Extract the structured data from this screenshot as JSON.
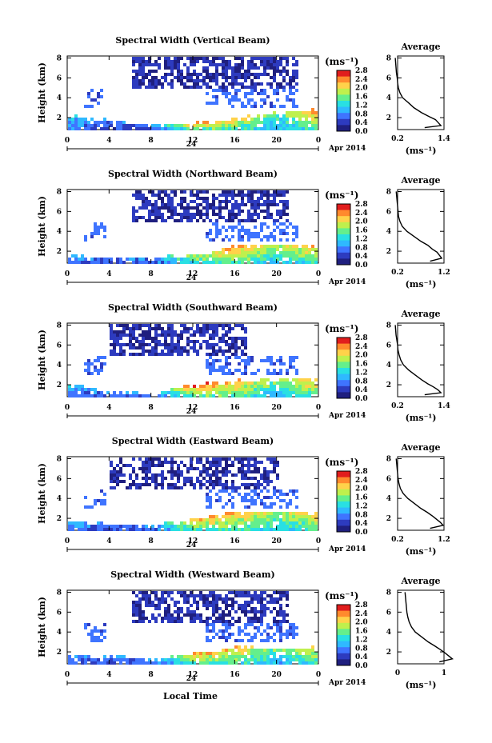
{
  "chart_data": [
    {
      "type": "heatmap",
      "title": "Spectral Width (Vertical Beam)",
      "xlabel": "",
      "ylabel": "Height (km)",
      "x_ticks": [
        "0",
        "4",
        "8",
        "12",
        "16",
        "20",
        "0"
      ],
      "y_ticks": [
        "2",
        "4",
        "6",
        "8"
      ],
      "date_label": "24",
      "month_label": "Apr 2014",
      "colorbar_unit": "(ms⁻¹)",
      "colorbar_ticks": [
        "0.0",
        "0.4",
        "0.8",
        "1.2",
        "1.6",
        "2.0",
        "2.4",
        "2.8"
      ],
      "xlim": [
        0,
        24
      ],
      "ylim": [
        0.8,
        8.2
      ],
      "heatmap_model": {
        "x_hours": [
          0,
          4,
          8,
          12,
          16,
          20,
          24
        ],
        "lower_layer_top_km": [
          2.3,
          1.8,
          1.3,
          1.6,
          2.0,
          2.6,
          2.9
        ],
        "peak_width_ms": [
          1.0,
          0.5,
          0.6,
          2.4,
          2.2,
          1.4,
          2.6
        ],
        "upper_echo_hours": [
          [
            6,
            22
          ]
        ]
      },
      "avg": {
        "title": "Average",
        "xlabel": "(ms⁻¹)",
        "x_ticks": [
          "0.2",
          "1.4"
        ],
        "y_ticks": [
          "2",
          "4",
          "6",
          "8"
        ],
        "profile": {
          "heights": [
            1.0,
            1.2,
            1.5,
            1.8,
            2.1,
            2.5,
            3.0,
            3.5,
            4.0,
            4.5,
            5.0,
            5.5,
            6.0,
            6.5,
            7.0,
            7.5,
            8.0
          ],
          "values": [
            0.9,
            1.32,
            1.25,
            1.18,
            1.02,
            0.82,
            0.62,
            0.48,
            0.33,
            0.26,
            0.22,
            0.2,
            0.19,
            0.17,
            0.16,
            0.15,
            0.14
          ]
        }
      }
    },
    {
      "type": "heatmap",
      "title": "Spectral Width (Northward Beam)",
      "xlabel": "",
      "ylabel": "Height (km)",
      "x_ticks": [
        "0",
        "4",
        "8",
        "12",
        "16",
        "20",
        "0"
      ],
      "y_ticks": [
        "2",
        "4",
        "6",
        "8"
      ],
      "date_label": "24",
      "month_label": "Apr 2014",
      "colorbar_unit": "(ms⁻¹)",
      "colorbar_ticks": [
        "0.0",
        "0.4",
        "0.8",
        "1.2",
        "1.6",
        "2.0",
        "2.4",
        "2.8"
      ],
      "xlim": [
        0,
        24
      ],
      "ylim": [
        0.8,
        8.2
      ],
      "heatmap_model": {
        "x_hours": [
          0,
          4,
          8,
          12,
          16,
          20,
          24
        ],
        "lower_layer_top_km": [
          1.7,
          1.5,
          1.5,
          1.8,
          2.6,
          2.9,
          2.6
        ],
        "peak_width_ms": [
          0.8,
          0.5,
          0.7,
          1.9,
          2.4,
          1.8,
          2.3
        ],
        "upper_echo_hours": [
          [
            6,
            21
          ]
        ]
      },
      "avg": {
        "title": "Average",
        "xlabel": "(ms⁻¹)",
        "x_ticks": [
          "0.2",
          "1.2"
        ],
        "y_ticks": [
          "2",
          "4",
          "6",
          "8"
        ],
        "profile": {
          "heights": [
            1.0,
            1.3,
            1.6,
            1.9,
            2.2,
            2.6,
            3.0,
            3.5,
            4.0,
            4.5,
            5.0,
            5.5,
            6.0,
            6.5,
            7.0,
            7.5,
            8.0
          ],
          "values": [
            0.9,
            1.15,
            1.1,
            1.05,
            0.95,
            0.85,
            0.7,
            0.55,
            0.4,
            0.3,
            0.25,
            0.22,
            0.21,
            0.2,
            0.19,
            0.18,
            0.17
          ]
        }
      }
    },
    {
      "type": "heatmap",
      "title": "Spectral Width (Southward Beam)",
      "xlabel": "",
      "ylabel": "Height (km)",
      "x_ticks": [
        "0",
        "4",
        "8",
        "12",
        "16",
        "20",
        "0"
      ],
      "y_ticks": [
        "2",
        "4",
        "6",
        "8"
      ],
      "date_label": "24",
      "month_label": "Apr 2014",
      "colorbar_unit": "(ms⁻¹)",
      "colorbar_ticks": [
        "0.0",
        "0.4",
        "0.8",
        "1.2",
        "1.6",
        "2.0",
        "2.4",
        "2.8"
      ],
      "xlim": [
        0,
        24
      ],
      "ylim": [
        0.8,
        8.2
      ],
      "heatmap_model": {
        "x_hours": [
          0,
          4,
          8,
          12,
          16,
          20,
          24
        ],
        "lower_layer_top_km": [
          2.1,
          1.4,
          1.2,
          2.1,
          2.5,
          2.7,
          2.8
        ],
        "peak_width_ms": [
          0.9,
          0.6,
          0.7,
          2.5,
          2.3,
          1.6,
          2.5
        ],
        "upper_echo_hours": [
          [
            4,
            17
          ]
        ]
      },
      "avg": {
        "title": "Average",
        "xlabel": "(ms⁻¹)",
        "x_ticks": [
          "0.2",
          "1.4"
        ],
        "y_ticks": [
          "2",
          "4",
          "6",
          "8"
        ],
        "profile": {
          "heights": [
            1.0,
            1.2,
            1.5,
            1.8,
            2.1,
            2.5,
            3.0,
            3.5,
            4.0,
            4.5,
            5.0,
            5.5,
            6.0,
            6.5,
            7.0,
            7.5,
            8.0
          ],
          "values": [
            0.9,
            1.32,
            1.24,
            1.12,
            0.98,
            0.82,
            0.65,
            0.48,
            0.35,
            0.28,
            0.24,
            0.21,
            0.2,
            0.18,
            0.16,
            0.15,
            0.14
          ]
        }
      }
    },
    {
      "type": "heatmap",
      "title": "Spectral Width (Eastward Beam)",
      "xlabel": "",
      "ylabel": "Height (km)",
      "x_ticks": [
        "0",
        "4",
        "8",
        "12",
        "16",
        "20",
        "0"
      ],
      "y_ticks": [
        "2",
        "4",
        "6",
        "8"
      ],
      "date_label": "24",
      "month_label": "Apr 2014",
      "colorbar_unit": "(ms⁻¹)",
      "colorbar_ticks": [
        "0.0",
        "0.4",
        "0.8",
        "1.2",
        "1.6",
        "2.0",
        "2.4",
        "2.8"
      ],
      "xlim": [
        0,
        24
      ],
      "ylim": [
        0.8,
        8.2
      ],
      "heatmap_model": {
        "x_hours": [
          0,
          4,
          8,
          12,
          16,
          20,
          24
        ],
        "lower_layer_top_km": [
          1.8,
          1.6,
          1.4,
          2.0,
          2.7,
          2.8,
          2.7
        ],
        "peak_width_ms": [
          0.9,
          0.5,
          0.7,
          2.2,
          2.3,
          1.7,
          2.4
        ],
        "upper_echo_hours": [
          [
            4,
            20
          ]
        ]
      },
      "avg": {
        "title": "Average",
        "xlabel": "(ms⁻¹)",
        "x_ticks": [
          "0.2",
          "1.2"
        ],
        "y_ticks": [
          "2",
          "4",
          "6",
          "8"
        ],
        "profile": {
          "heights": [
            1.0,
            1.3,
            1.6,
            1.9,
            2.2,
            2.6,
            3.0,
            3.5,
            4.0,
            4.5,
            5.0,
            5.5,
            6.0,
            6.5,
            7.0,
            7.5,
            8.0
          ],
          "values": [
            0.9,
            1.18,
            1.12,
            1.04,
            0.96,
            0.84,
            0.7,
            0.56,
            0.42,
            0.32,
            0.26,
            0.23,
            0.21,
            0.2,
            0.19,
            0.18,
            0.17
          ]
        }
      }
    },
    {
      "type": "heatmap",
      "title": "Spectral Width (Westward Beam)",
      "xlabel": "Local Time",
      "ylabel": "Height (km)",
      "x_ticks": [
        "0",
        "4",
        "8",
        "12",
        "16",
        "20",
        "0"
      ],
      "y_ticks": [
        "2",
        "4",
        "6",
        "8"
      ],
      "date_label": "24",
      "month_label": "Apr 2014",
      "colorbar_unit": "(ms⁻¹)",
      "colorbar_ticks": [
        "0.0",
        "0.4",
        "0.8",
        "1.2",
        "1.6",
        "2.0",
        "2.4",
        "2.8"
      ],
      "xlim": [
        0,
        24
      ],
      "ylim": [
        0.8,
        8.2
      ],
      "heatmap_model": {
        "x_hours": [
          0,
          4,
          8,
          12,
          16,
          20,
          24
        ],
        "lower_layer_top_km": [
          1.8,
          1.7,
          1.4,
          2.0,
          2.6,
          2.5,
          2.6
        ],
        "peak_width_ms": [
          0.8,
          0.6,
          0.7,
          2.3,
          2.2,
          1.5,
          2.2
        ],
        "upper_echo_hours": [
          [
            6,
            21
          ]
        ]
      },
      "avg": {
        "title": "Average",
        "xlabel": "(ms⁻¹)",
        "x_ticks": [
          "0",
          "1"
        ],
        "y_ticks": [
          "2",
          "4",
          "6",
          "8"
        ],
        "profile": {
          "heights": [
            1.0,
            1.3,
            1.6,
            1.9,
            2.2,
            2.6,
            3.0,
            3.5,
            4.0,
            4.5,
            5.0,
            5.5,
            6.0,
            6.5,
            7.0,
            7.5,
            8.0
          ],
          "values": [
            0.9,
            1.18,
            1.1,
            1.02,
            0.93,
            0.8,
            0.66,
            0.52,
            0.38,
            0.3,
            0.25,
            0.22,
            0.2,
            0.19,
            0.18,
            0.17,
            0.16
          ]
        }
      }
    }
  ],
  "colorscale": [
    "#1f1f7f",
    "#2d3bbf",
    "#3f74ff",
    "#2fb9ff",
    "#29e0e3",
    "#64ef8c",
    "#bff04d",
    "#ffd24a",
    "#ff8a2d",
    "#e11d1d"
  ]
}
